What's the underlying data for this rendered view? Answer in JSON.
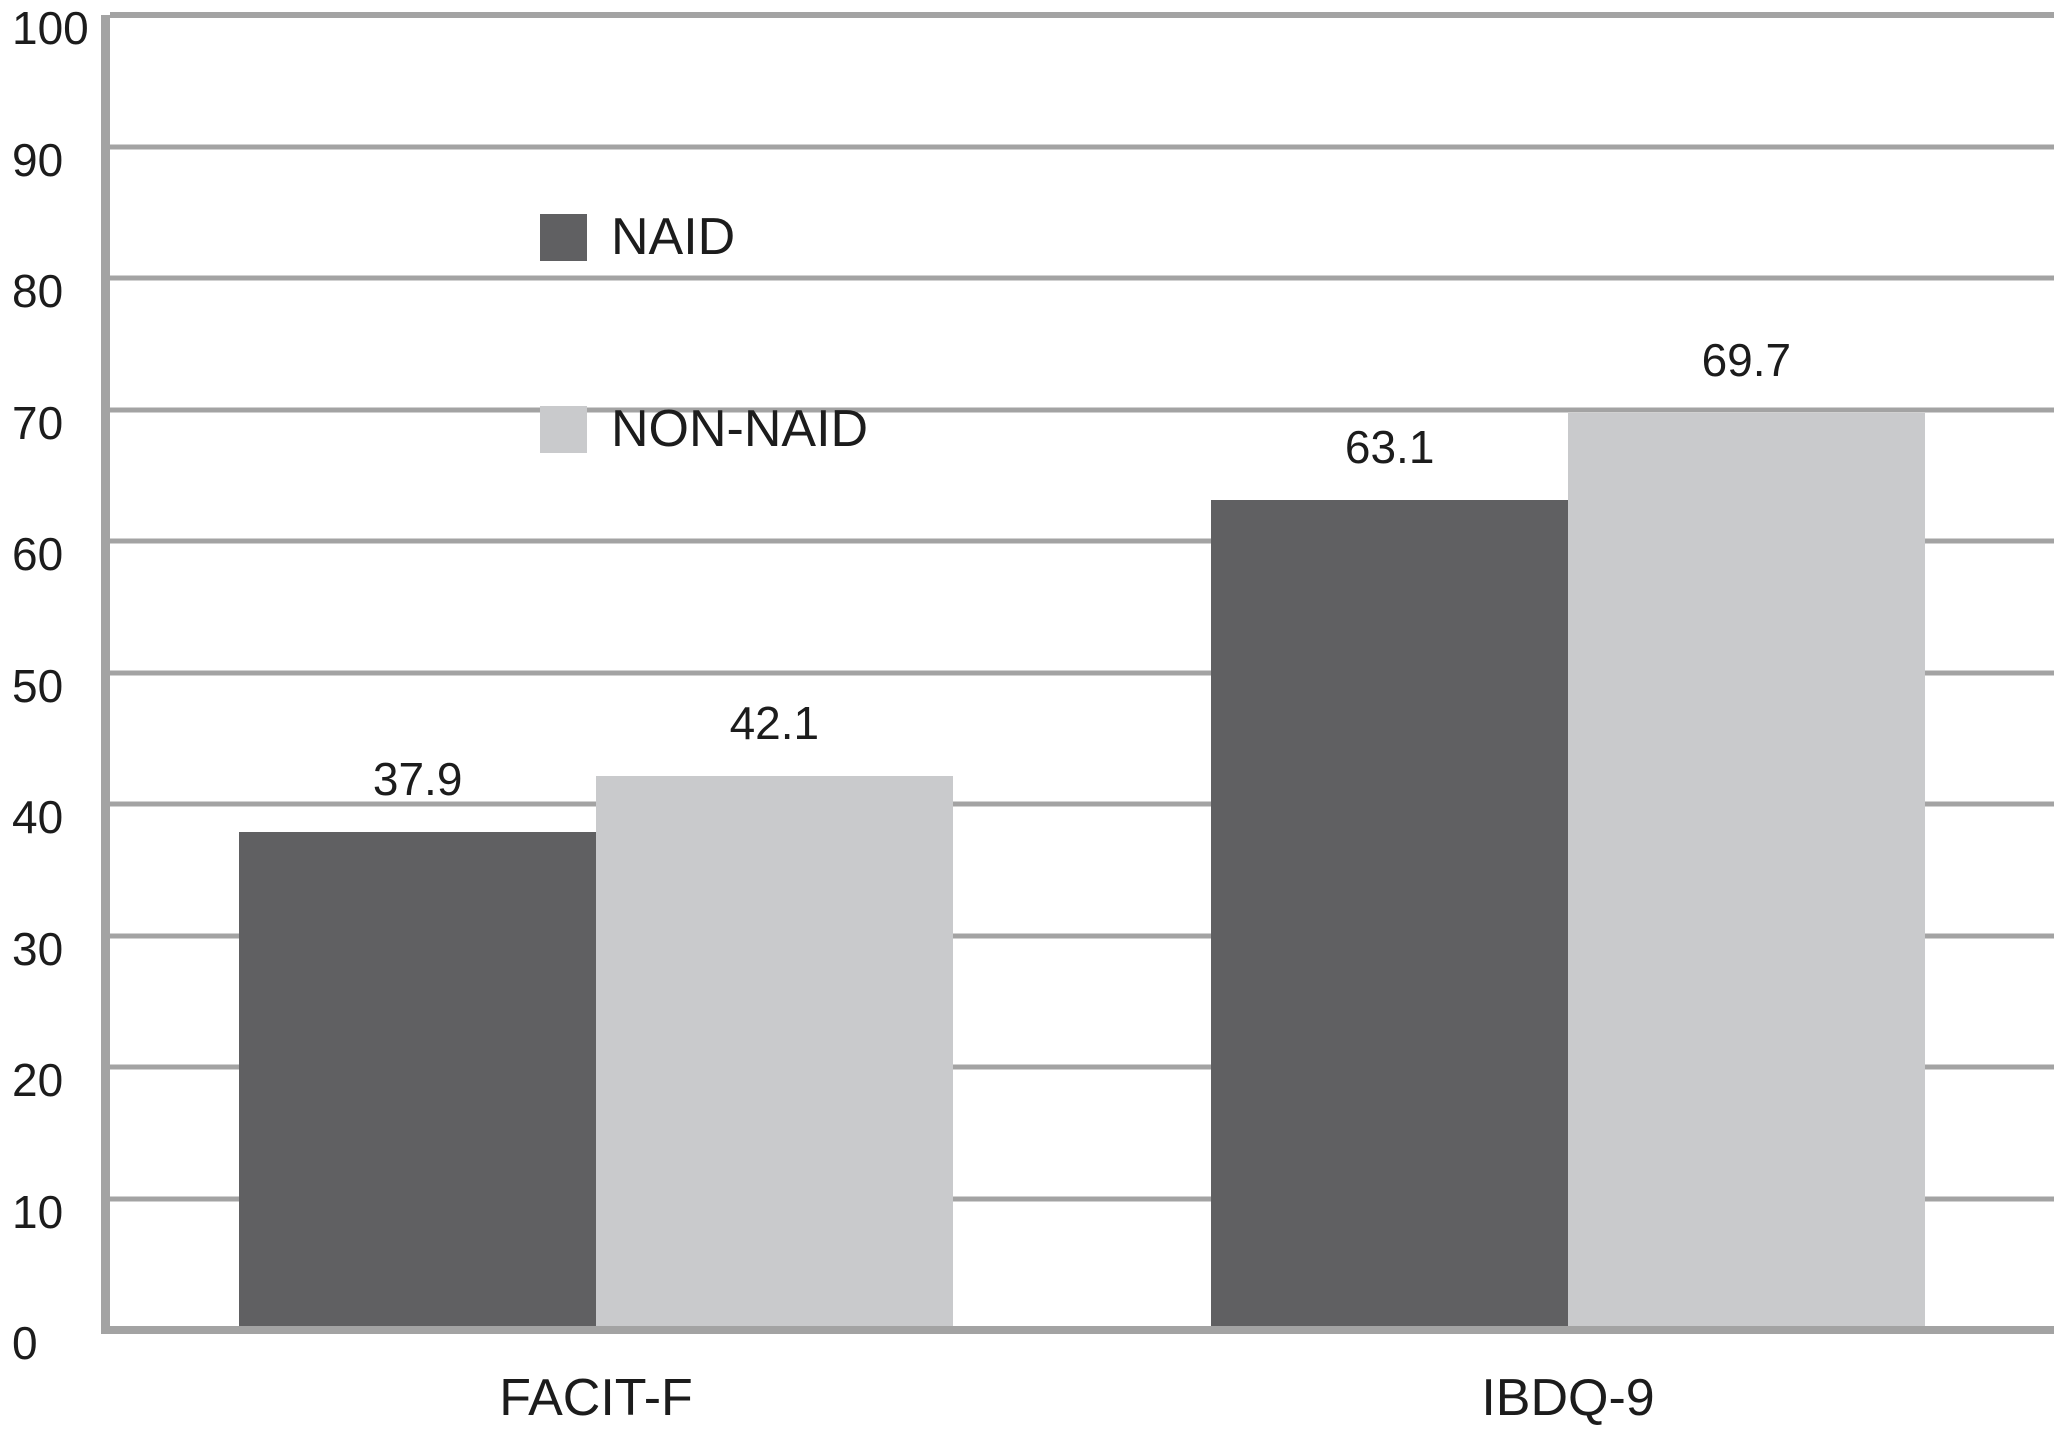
{
  "chart_data": {
    "type": "bar",
    "title": "",
    "xlabel": "",
    "ylabel": "",
    "categories": [
      "FACIT-F",
      "IBDQ-9"
    ],
    "series": [
      {
        "name": "NAID",
        "color": "#606062",
        "values": [
          37.9,
          63.1
        ],
        "value_labels": [
          "37.9",
          "63.1"
        ]
      },
      {
        "name": "NON-NAID",
        "color": "#c9cacc",
        "values": [
          42.1,
          69.7
        ],
        "value_labels": [
          "42.1",
          "69.7"
        ]
      }
    ],
    "ylim": [
      0,
      100
    ],
    "yticks": [
      "0",
      "10",
      "20",
      "30",
      "40",
      "50",
      "60",
      "70",
      "80",
      "90",
      "100"
    ],
    "grid": "horizontal",
    "legend_position": "upper-left-inside"
  },
  "colors": {
    "gridline": "#a3a3a3",
    "axis_line": "#a3a3a3",
    "text": "#1c1c1c",
    "background": "#ffffff"
  }
}
